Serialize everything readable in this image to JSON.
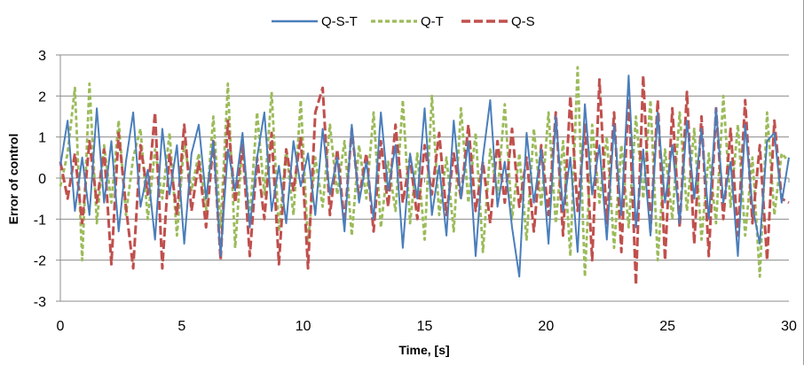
{
  "chart_data": {
    "type": "line",
    "title": "",
    "xlabel": "Time, [s]",
    "ylabel": "Error of control",
    "xlim": [
      0,
      30
    ],
    "ylim": [
      -3,
      3
    ],
    "x_ticks": [
      0,
      5,
      10,
      15,
      20,
      25,
      30
    ],
    "y_ticks": [
      -3,
      -2,
      -1,
      0,
      1,
      2,
      3
    ],
    "grid": "horizontal",
    "legend_position": "top",
    "series": [
      {
        "name": "Q-S-T",
        "color": "#4a7ebb",
        "style": "solid",
        "x": [
          0.0,
          0.3,
          0.6,
          0.9,
          1.2,
          1.5,
          1.8,
          2.1,
          2.4,
          2.7,
          3.0,
          3.3,
          3.6,
          3.9,
          4.2,
          4.5,
          4.8,
          5.1,
          5.4,
          5.7,
          6.0,
          6.3,
          6.6,
          6.9,
          7.2,
          7.5,
          7.8,
          8.1,
          8.4,
          8.7,
          9.0,
          9.3,
          9.6,
          9.9,
          10.2,
          10.5,
          10.8,
          11.1,
          11.4,
          11.7,
          12.0,
          12.3,
          12.6,
          12.9,
          13.2,
          13.5,
          13.8,
          14.1,
          14.4,
          14.7,
          15.0,
          15.3,
          15.6,
          15.9,
          16.2,
          16.5,
          16.8,
          17.1,
          17.4,
          17.7,
          18.0,
          18.3,
          18.6,
          18.9,
          19.2,
          19.5,
          19.8,
          20.1,
          20.4,
          20.7,
          21.0,
          21.3,
          21.6,
          21.9,
          22.2,
          22.5,
          22.8,
          23.1,
          23.4,
          23.7,
          24.0,
          24.3,
          24.6,
          24.9,
          25.2,
          25.5,
          25.8,
          26.1,
          26.4,
          26.7,
          27.0,
          27.3,
          27.6,
          27.9,
          28.2,
          28.5,
          28.8,
          29.1,
          29.4,
          29.7,
          30.0
        ],
        "values": [
          0.3,
          1.4,
          -0.8,
          0.5,
          -0.9,
          1.7,
          -0.6,
          0.9,
          -1.3,
          0.4,
          1.6,
          -0.7,
          0.2,
          -1.5,
          1.2,
          -0.4,
          0.8,
          -1.6,
          0.6,
          1.3,
          -0.5,
          0.9,
          -1.9,
          0.7,
          -0.3,
          1.1,
          -1.2,
          0.5,
          1.6,
          -0.8,
          0.3,
          -1.1,
          0.9,
          -0.2,
          0.6,
          -0.9,
          1.2,
          -0.4,
          0.5,
          -1.3,
          1.3,
          -0.6,
          0.4,
          -1.0,
          1.6,
          -0.3,
          0.8,
          -1.7,
          0.6,
          -0.5,
          1.7,
          -0.9,
          0.3,
          -1.4,
          1.4,
          -0.5,
          0.9,
          -1.9,
          0.5,
          1.9,
          -0.7,
          0.4,
          -1.2,
          -2.4,
          1.1,
          -0.6,
          0.7,
          -1.6,
          1.5,
          -0.8,
          0.5,
          -1.8,
          1.8,
          -0.4,
          0.8,
          -1.5,
          1.3,
          -0.9,
          2.5,
          -1.2,
          0.7,
          -1.4,
          1.6,
          -0.6,
          0.8,
          -1.1,
          1.4,
          -0.5,
          1.2,
          -1.0,
          1.7,
          -0.6,
          0.4,
          -1.9,
          1.3,
          -0.7,
          -1.6,
          0.9,
          1.1,
          -0.6,
          0.5
        ]
      },
      {
        "name": "Q-T",
        "color": "#9bbb59",
        "style": "dashed",
        "x": [
          0.0,
          0.3,
          0.6,
          0.9,
          1.2,
          1.5,
          1.8,
          2.1,
          2.4,
          2.7,
          3.0,
          3.3,
          3.6,
          3.9,
          4.2,
          4.5,
          4.8,
          5.1,
          5.4,
          5.7,
          6.0,
          6.3,
          6.6,
          6.9,
          7.2,
          7.5,
          7.8,
          8.1,
          8.4,
          8.7,
          9.0,
          9.3,
          9.6,
          9.9,
          10.2,
          10.5,
          10.8,
          11.1,
          11.4,
          11.7,
          12.0,
          12.3,
          12.6,
          12.9,
          13.2,
          13.5,
          13.8,
          14.1,
          14.4,
          14.7,
          15.0,
          15.3,
          15.6,
          15.9,
          16.2,
          16.5,
          16.8,
          17.1,
          17.4,
          17.7,
          18.0,
          18.3,
          18.6,
          18.9,
          19.2,
          19.5,
          19.8,
          20.1,
          20.4,
          20.7,
          21.0,
          21.3,
          21.6,
          21.9,
          22.2,
          22.5,
          22.8,
          23.1,
          23.4,
          23.7,
          24.0,
          24.3,
          24.6,
          24.9,
          25.2,
          25.5,
          25.8,
          26.1,
          26.4,
          26.7,
          27.0,
          27.3,
          27.6,
          27.9,
          28.2,
          28.5,
          28.8,
          29.1,
          29.4,
          29.7,
          30.0
        ],
        "values": [
          -0.2,
          0.6,
          2.2,
          -2.0,
          2.3,
          -1.1,
          0.8,
          -0.6,
          1.4,
          -0.9,
          0.5,
          1.2,
          -1.0,
          0.7,
          -0.5,
          1.1,
          -1.4,
          0.9,
          -0.3,
          0.6,
          -0.8,
          1.5,
          -1.2,
          2.3,
          -1.7,
          0.9,
          -1.0,
          1.6,
          -0.4,
          2.1,
          -1.3,
          0.7,
          -0.9,
          1.9,
          -1.6,
          0.5,
          -0.7,
          1.3,
          -0.4,
          0.9,
          -1.4,
          0.8,
          -0.5,
          1.6,
          -1.2,
          0.4,
          -0.8,
          1.9,
          -1.1,
          0.6,
          -1.5,
          2.0,
          -0.9,
          0.5,
          -1.3,
          1.7,
          -0.6,
          1.1,
          -1.8,
          0.7,
          -0.4,
          1.8,
          -1.0,
          0.6,
          -1.5,
          1.2,
          -0.7,
          1.6,
          -1.1,
          0.9,
          -1.9,
          2.7,
          -2.4,
          1.3,
          -0.6,
          1.0,
          -1.7,
          0.8,
          -1.2,
          1.5,
          -0.5,
          1.9,
          -2.0,
          0.7,
          -1.0,
          1.6,
          -0.8,
          1.2,
          -1.5,
          0.6,
          -1.1,
          2.0,
          -0.7,
          1.3,
          -1.4,
          0.5,
          -2.4,
          1.6,
          -0.9,
          0.6,
          0.4
        ]
      },
      {
        "name": "Q-S",
        "color": "#c0504d",
        "style": "dashed",
        "x": [
          0.0,
          0.3,
          0.6,
          0.9,
          1.2,
          1.5,
          1.8,
          2.1,
          2.4,
          2.7,
          3.0,
          3.3,
          3.6,
          3.9,
          4.2,
          4.5,
          4.8,
          5.1,
          5.4,
          5.7,
          6.0,
          6.3,
          6.6,
          6.9,
          7.2,
          7.5,
          7.8,
          8.1,
          8.4,
          8.7,
          9.0,
          9.3,
          9.6,
          9.9,
          10.2,
          10.5,
          10.8,
          11.1,
          11.4,
          11.7,
          12.0,
          12.3,
          12.6,
          12.9,
          13.2,
          13.5,
          13.8,
          14.1,
          14.4,
          14.7,
          15.0,
          15.3,
          15.6,
          15.9,
          16.2,
          16.5,
          16.8,
          17.1,
          17.4,
          17.7,
          18.0,
          18.3,
          18.6,
          18.9,
          19.2,
          19.5,
          19.8,
          20.1,
          20.4,
          20.7,
          21.0,
          21.3,
          21.6,
          21.9,
          22.2,
          22.5,
          22.8,
          23.1,
          23.4,
          23.7,
          24.0,
          24.3,
          24.6,
          24.9,
          25.2,
          25.5,
          25.8,
          26.1,
          26.4,
          26.7,
          27.0,
          27.3,
          27.6,
          27.9,
          28.2,
          28.5,
          28.8,
          29.1,
          29.4,
          29.7,
          30.0
        ],
        "values": [
          0.4,
          -0.5,
          0.6,
          -1.1,
          0.9,
          -0.6,
          0.7,
          -2.1,
          1.1,
          -0.7,
          -2.2,
          0.8,
          -0.4,
          1.6,
          -2.2,
          0.6,
          -0.9,
          1.3,
          -0.8,
          0.4,
          -1.2,
          0.9,
          -2.0,
          1.4,
          -0.6,
          0.8,
          -1.9,
          0.5,
          -1.0,
          1.1,
          -2.1,
          0.7,
          -0.3,
          1.0,
          -2.2,
          1.6,
          2.2,
          -0.9,
          0.7,
          -1.1,
          1.2,
          -0.5,
          0.6,
          -1.3,
          0.9,
          -0.7,
          1.3,
          -0.6,
          0.5,
          -1.0,
          0.8,
          -0.4,
          1.1,
          -0.9,
          0.6,
          -0.5,
          1.3,
          -0.8,
          0.4,
          -1.1,
          0.9,
          -0.6,
          1.2,
          -0.7,
          0.5,
          -1.3,
          0.8,
          -0.9,
          1.6,
          -1.4,
          2.0,
          -0.8,
          1.3,
          -2.0,
          2.4,
          -1.1,
          1.6,
          -1.8,
          2.1,
          -2.6,
          2.5,
          -1.3,
          1.9,
          -2.0,
          1.7,
          -1.2,
          2.1,
          -1.6,
          1.5,
          -1.9,
          1.7,
          -1.0,
          1.2,
          -1.4,
          1.9,
          -1.1,
          0.8,
          -2.0,
          1.4,
          -0.5,
          -0.6
        ]
      }
    ]
  }
}
